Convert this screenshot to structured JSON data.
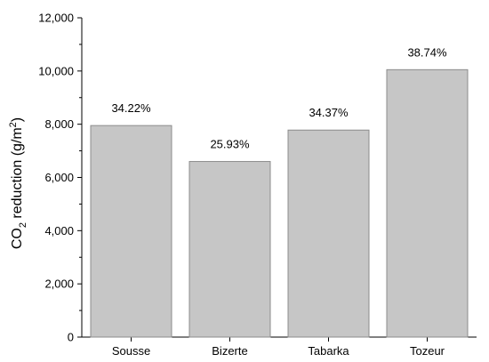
{
  "chart_data": {
    "type": "bar",
    "categories": [
      "Sousse",
      "Bizerte",
      "Tabarka",
      "Tozeur"
    ],
    "values": [
      7950,
      6600,
      7780,
      10050
    ],
    "data_labels": [
      "34.22%",
      "25.93%",
      "34.37%",
      "38.74%"
    ],
    "title": "",
    "xlabel": "",
    "ylabel": {
      "main": "CO",
      "subscript": "2",
      "middle": " reduction (g/m",
      "superscript": "2",
      "end": ")"
    },
    "ylim": [
      0,
      12000
    ],
    "yticks": [
      "0",
      "2,000",
      "4,000",
      "6,000",
      "8,000",
      "10,000",
      "12,000"
    ],
    "grid": false,
    "bar_color": "#c6c6c6",
    "bar_edge_color": "#8c8c8c"
  }
}
